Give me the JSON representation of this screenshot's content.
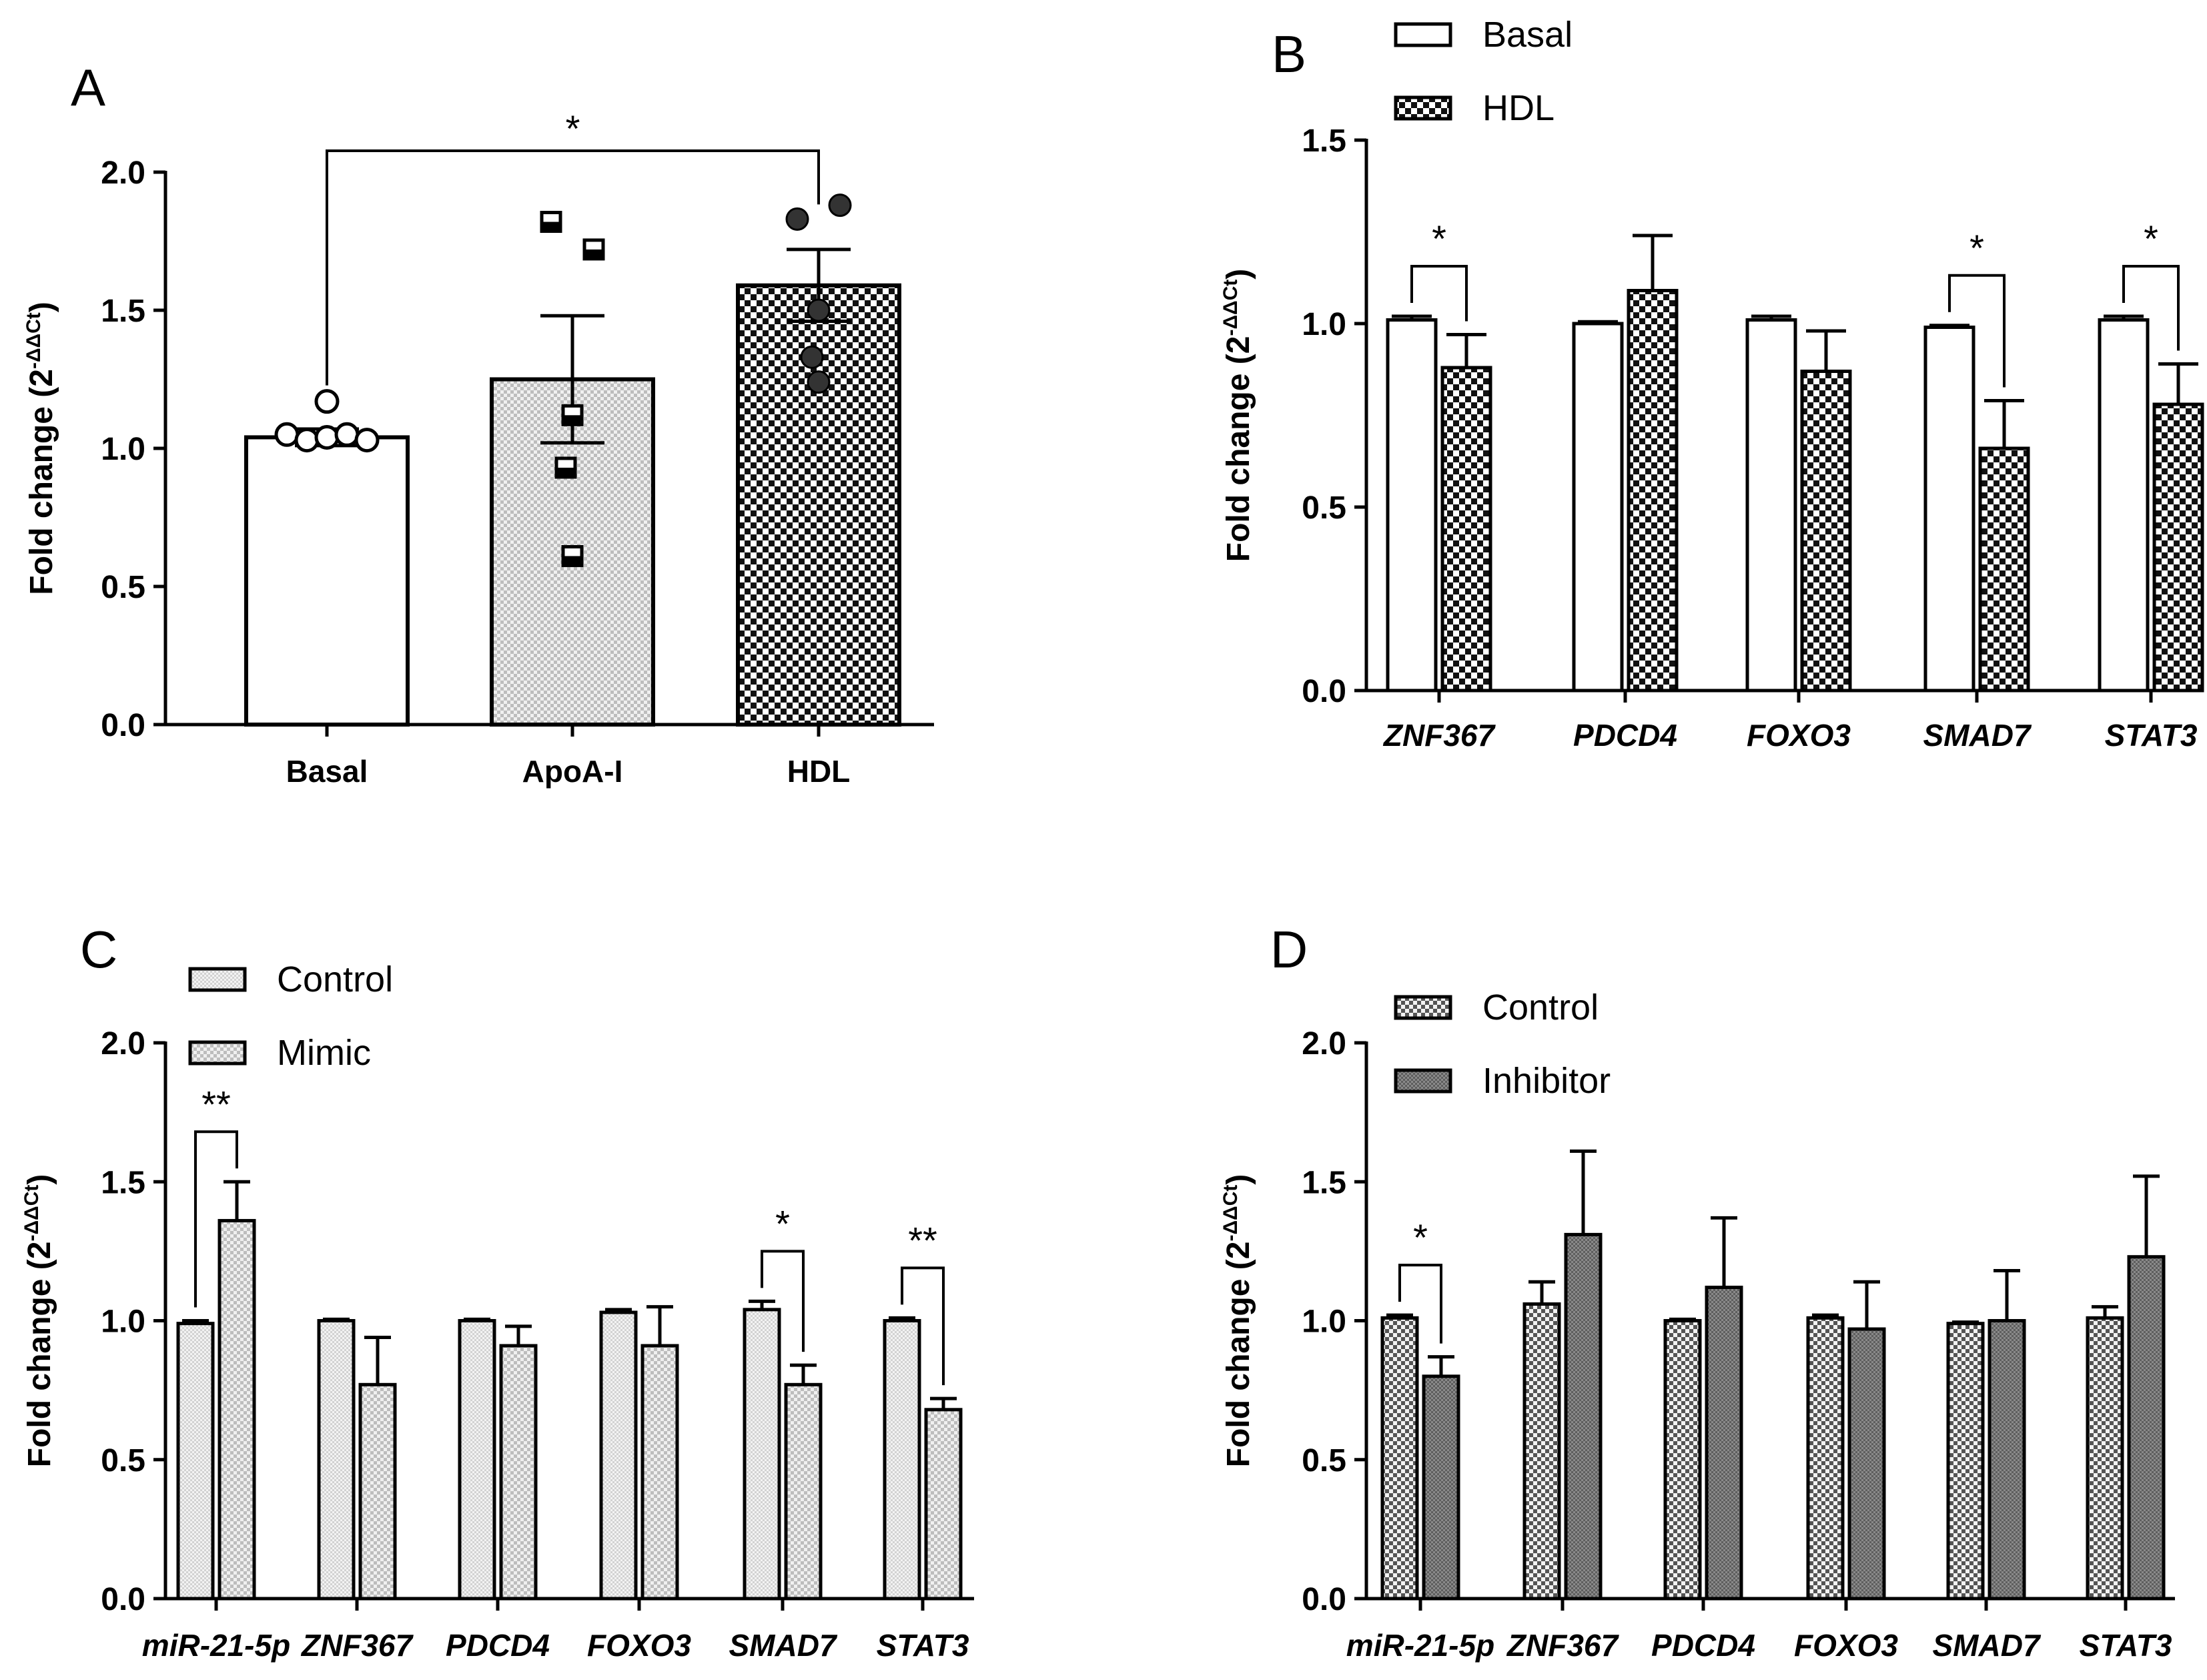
{
  "figure": {
    "panels": [
      "A",
      "B",
      "C",
      "D"
    ]
  },
  "chart_data": [
    {
      "panel": "A",
      "type": "bar",
      "ylabel": "Fold change (2",
      "ylabel_sup": "-ΔΔCt",
      "ylabel_close": ")",
      "ylim": [
        0,
        2.0
      ],
      "yticks": [
        0.0,
        0.5,
        1.0,
        1.5,
        2.0
      ],
      "ytick_labels": [
        "0.0",
        "0.5",
        "1.0",
        "1.5",
        "2.0"
      ],
      "categories": [
        "Basal",
        "ApoA-I",
        "HDL"
      ],
      "italic_categories": false,
      "values": [
        1.04,
        1.25,
        1.59
      ],
      "errors": [
        0.03,
        0.23,
        0.13
      ],
      "patterns": [
        "white",
        "light-check",
        "dark-check"
      ],
      "points": [
        [
          1.05,
          1.03,
          1.04,
          1.05,
          1.03,
          1.17
        ],
        [
          1.82,
          1.72,
          1.12,
          0.93,
          0.61
        ],
        [
          1.83,
          1.88,
          1.5,
          1.33,
          1.24
        ]
      ],
      "marker_shapes": [
        "circle",
        "square",
        "circle-filled"
      ],
      "significance": [
        {
          "from": 0,
          "to": 2,
          "label": "*"
        }
      ]
    },
    {
      "panel": "B",
      "type": "bar",
      "ylabel": "Fold change (2",
      "ylabel_sup": "-ΔΔCt",
      "ylabel_close": ")",
      "ylim": [
        0,
        1.5
      ],
      "yticks": [
        0.0,
        0.5,
        1.0,
        1.5
      ],
      "ytick_labels": [
        "0.0",
        "0.5",
        "1.0",
        "1.5"
      ],
      "categories": [
        "ZNF367",
        "PDCD4",
        "FOXO3",
        "SMAD7",
        "STAT3"
      ],
      "italic_categories": true,
      "series": [
        {
          "name": "Basal",
          "pattern": "white",
          "values": [
            1.01,
            1.0,
            1.01,
            0.99,
            1.01
          ],
          "errors": [
            0.01,
            0.005,
            0.01,
            0.005,
            0.01
          ]
        },
        {
          "name": "HDL",
          "pattern": "dark-check",
          "values": [
            0.88,
            1.09,
            0.87,
            0.66,
            0.78
          ],
          "errors": [
            0.09,
            0.15,
            0.11,
            0.13,
            0.11
          ]
        }
      ],
      "significance": [
        {
          "group": 0,
          "label": "*"
        },
        {
          "group": 3,
          "label": "*"
        },
        {
          "group": 4,
          "label": "*"
        }
      ],
      "legend": [
        "Basal",
        "HDL"
      ]
    },
    {
      "panel": "C",
      "type": "bar",
      "ylabel": "Fold change (2",
      "ylabel_sup": "-ΔΔCt",
      "ylabel_close": ")",
      "ylim": [
        0,
        2.0
      ],
      "yticks": [
        0.0,
        0.5,
        1.0,
        1.5,
        2.0
      ],
      "ytick_labels": [
        "0.0",
        "0.5",
        "1.0",
        "1.5",
        "2.0"
      ],
      "categories": [
        "miR-21-5p",
        "ZNF367",
        "PDCD4",
        "FOXO3",
        "SMAD7",
        "STAT3"
      ],
      "italic_categories": true,
      "series": [
        {
          "name": "Control",
          "pattern": "light-dots",
          "values": [
            0.99,
            1.0,
            1.0,
            1.03,
            1.04,
            1.0
          ],
          "errors": [
            0.01,
            0.005,
            0.005,
            0.01,
            0.03,
            0.01
          ]
        },
        {
          "name": "Mimic",
          "pattern": "light-check",
          "values": [
            1.36,
            0.77,
            0.91,
            0.91,
            0.77,
            0.68
          ],
          "errors": [
            0.14,
            0.17,
            0.07,
            0.14,
            0.07,
            0.04
          ]
        }
      ],
      "significance": [
        {
          "group": 0,
          "label": "**"
        },
        {
          "group": 4,
          "label": "*"
        },
        {
          "group": 5,
          "label": "**"
        }
      ],
      "legend": [
        "Control",
        "Mimic"
      ]
    },
    {
      "panel": "D",
      "type": "bar",
      "ylabel": "Fold change (2",
      "ylabel_sup": "-ΔΔCt",
      "ylabel_close": ")",
      "ylim": [
        0,
        2.0
      ],
      "yticks": [
        0.0,
        0.5,
        1.0,
        1.5,
        2.0
      ],
      "ytick_labels": [
        "0.0",
        "0.5",
        "1.0",
        "1.5",
        "2.0"
      ],
      "categories": [
        "miR-21-5p",
        "ZNF367",
        "PDCD4",
        "FOXO3",
        "SMAD7",
        "STAT3"
      ],
      "italic_categories": true,
      "series": [
        {
          "name": "Control",
          "pattern": "mid-check",
          "values": [
            1.01,
            1.06,
            1.0,
            1.01,
            0.99,
            1.01
          ],
          "errors": [
            0.01,
            0.08,
            0.005,
            0.01,
            0.005,
            0.04
          ]
        },
        {
          "name": "Inhibitor",
          "pattern": "grey-dots",
          "values": [
            0.8,
            1.31,
            1.12,
            0.97,
            1.0,
            1.23
          ],
          "errors": [
            0.07,
            0.3,
            0.25,
            0.17,
            0.18,
            0.29
          ]
        }
      ],
      "significance": [
        {
          "group": 0,
          "label": "*"
        }
      ],
      "legend": [
        "Control",
        "Inhibitor"
      ]
    }
  ]
}
